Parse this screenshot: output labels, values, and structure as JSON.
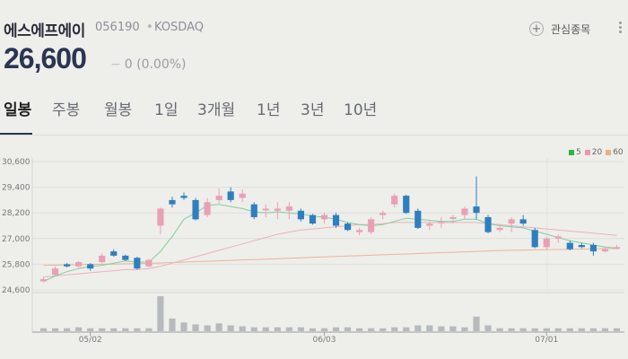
{
  "stock": {
    "name": "에스에프에이",
    "code": "056190",
    "separator": "•",
    "market": "KOSDAQ",
    "price": "26,600",
    "change_symbol": "−",
    "change": "0",
    "change_pct": "(0.00%)"
  },
  "watchlist": {
    "label": "관심종목"
  },
  "tabs": [
    {
      "label": "일봉",
      "active": true
    },
    {
      "label": "주봉",
      "active": false
    },
    {
      "label": "월봉",
      "active": false
    },
    {
      "label": "1일",
      "active": false
    },
    {
      "label": "3개월",
      "active": false
    },
    {
      "label": "1년",
      "active": false
    },
    {
      "label": "3년",
      "active": false
    },
    {
      "label": "10년",
      "active": false
    }
  ],
  "legend": [
    {
      "label": "5",
      "color": "#2ab54a"
    },
    {
      "label": "20",
      "color": "#e89ab0"
    },
    {
      "label": "60",
      "color": "#e8b08a"
    }
  ],
  "colors": {
    "up": "#e9a0b6",
    "down": "#2f7fc0",
    "volume": "#b7babd"
  },
  "chart_data": {
    "type": "candlestick",
    "y_ticks": [
      "30,600",
      "29,400",
      "28,200",
      "27,000",
      "25,800",
      "24,600"
    ],
    "ylim": [
      24600,
      30600
    ],
    "x_ticks": [
      {
        "label": "05/02",
        "index": 4
      },
      {
        "label": "06/03",
        "index": 24
      },
      {
        "label": "07/01",
        "index": 43
      }
    ],
    "candles": [
      [
        25000,
        25100,
        24950,
        25200,
        "up"
      ],
      [
        25300,
        25600,
        25250,
        25700,
        "up"
      ],
      [
        25800,
        25700,
        25650,
        25850,
        "down"
      ],
      [
        25700,
        25900,
        25650,
        25950,
        "up"
      ],
      [
        25800,
        25600,
        25500,
        25850,
        "down"
      ],
      [
        25900,
        26200,
        25850,
        26300,
        "up"
      ],
      [
        26400,
        26200,
        26150,
        26500,
        "down"
      ],
      [
        26200,
        26000,
        25950,
        26250,
        "down"
      ],
      [
        26100,
        25600,
        25550,
        26150,
        "down"
      ],
      [
        25700,
        26000,
        25650,
        26050,
        "up"
      ],
      [
        27600,
        28400,
        27200,
        28450,
        "up"
      ],
      [
        28800,
        28600,
        28450,
        28950,
        "down"
      ],
      [
        29000,
        28900,
        28800,
        29150,
        "down"
      ],
      [
        28800,
        27900,
        27850,
        28900,
        "down"
      ],
      [
        28100,
        28700,
        28000,
        28900,
        "up"
      ],
      [
        29000,
        28800,
        28650,
        29350,
        "up"
      ],
      [
        29200,
        28800,
        28700,
        29400,
        "down"
      ],
      [
        29100,
        28900,
        28700,
        29300,
        "up"
      ],
      [
        28600,
        28000,
        27900,
        28700,
        "down"
      ],
      [
        28400,
        28400,
        28000,
        28600,
        "up"
      ],
      [
        28300,
        28400,
        27900,
        28700,
        "up"
      ],
      [
        28500,
        28300,
        27900,
        28700,
        "up"
      ],
      [
        28300,
        27900,
        27800,
        28400,
        "down"
      ],
      [
        28100,
        27700,
        27650,
        28150,
        "down"
      ],
      [
        27900,
        28100,
        27700,
        28200,
        "up"
      ],
      [
        28100,
        27600,
        27500,
        28200,
        "down"
      ],
      [
        27700,
        27400,
        27350,
        27750,
        "down"
      ],
      [
        27300,
        27400,
        27150,
        27500,
        "up"
      ],
      [
        27300,
        27900,
        27200,
        28000,
        "up"
      ],
      [
        28100,
        28200,
        27900,
        28300,
        "up"
      ],
      [
        29000,
        28600,
        28450,
        29100,
        "up"
      ],
      [
        29000,
        28200,
        28150,
        29050,
        "down"
      ],
      [
        28300,
        27500,
        27450,
        28400,
        "down"
      ],
      [
        27600,
        27700,
        27400,
        27800,
        "up"
      ],
      [
        27800,
        27800,
        27500,
        28000,
        "up"
      ],
      [
        28000,
        28000,
        27700,
        28100,
        "up"
      ],
      [
        28400,
        28100,
        27900,
        28500,
        "up"
      ],
      [
        28500,
        28200,
        27900,
        29900,
        "down"
      ],
      [
        28000,
        27300,
        27250,
        28100,
        "down"
      ],
      [
        27500,
        27400,
        27300,
        27650,
        "up"
      ],
      [
        27700,
        27900,
        27300,
        28000,
        "up"
      ],
      [
        27900,
        27700,
        27600,
        28100,
        "down"
      ],
      [
        27400,
        26600,
        26550,
        27500,
        "down"
      ],
      [
        26600,
        27000,
        26500,
        27100,
        "up"
      ],
      [
        27000,
        27100,
        26800,
        27200,
        "up"
      ],
      [
        26800,
        26500,
        26450,
        26900,
        "down"
      ],
      [
        26700,
        26600,
        26550,
        26800,
        "down"
      ],
      [
        26700,
        26400,
        26200,
        26800,
        "down"
      ],
      [
        26400,
        26500,
        26350,
        26600,
        "up"
      ],
      [
        26600,
        26600,
        26500,
        26700,
        "up"
      ]
    ],
    "volume": [
      3,
      3,
      3,
      4,
      3,
      3,
      3,
      3,
      3,
      3,
      36,
      13,
      9,
      7,
      6,
      8,
      6,
      5,
      4,
      4,
      4,
      4,
      4,
      3,
      3,
      4,
      4,
      3,
      3,
      3,
      4,
      4,
      6,
      6,
      5,
      5,
      4,
      15,
      6,
      3,
      3,
      3,
      3,
      3,
      3,
      3,
      3,
      3,
      3,
      3
    ],
    "ma5": [
      25000,
      25250,
      25450,
      25600,
      25700,
      25750,
      25850,
      25950,
      25900,
      25900,
      26400,
      27100,
      27900,
      28200,
      28550,
      28600,
      28500,
      28400,
      28250,
      28200,
      28250,
      28200,
      28150,
      28050,
      28000,
      27900,
      27750,
      27650,
      27600,
      27650,
      27800,
      27950,
      27900,
      27850,
      27800,
      27800,
      27900,
      27900,
      27700,
      27600,
      27550,
      27500,
      27350,
      27200,
      27050,
      26900,
      26800,
      26700,
      26600,
      26550
    ],
    "ma20": [
      25200,
      25250,
      25300,
      25350,
      25400,
      25450,
      25500,
      25550,
      25550,
      25600,
      25700,
      25850,
      26000,
      26150,
      26300,
      26450,
      26600,
      26750,
      26900,
      27050,
      27200,
      27300,
      27400,
      27450,
      27500,
      27550,
      27600,
      27650,
      27650,
      27700,
      27750,
      27750,
      27750,
      27750,
      27750,
      27750,
      27750,
      27750,
      27700,
      27650,
      27600,
      27550,
      27500,
      27450,
      27400,
      27350,
      27300,
      27250,
      27200,
      27150
    ],
    "ma60": [
      25750,
      25760,
      25770,
      25780,
      25790,
      25800,
      25810,
      25820,
      25830,
      25840,
      25860,
      25880,
      25900,
      25920,
      25940,
      25960,
      25980,
      26000,
      26020,
      26040,
      26060,
      26080,
      26100,
      26120,
      26140,
      26160,
      26180,
      26200,
      26220,
      26240,
      26260,
      26280,
      26300,
      26320,
      26340,
      26360,
      26380,
      26400,
      26420,
      26440,
      26450,
      26460,
      26470,
      26480,
      26490,
      26500,
      26510,
      26520,
      26530,
      26540
    ]
  }
}
